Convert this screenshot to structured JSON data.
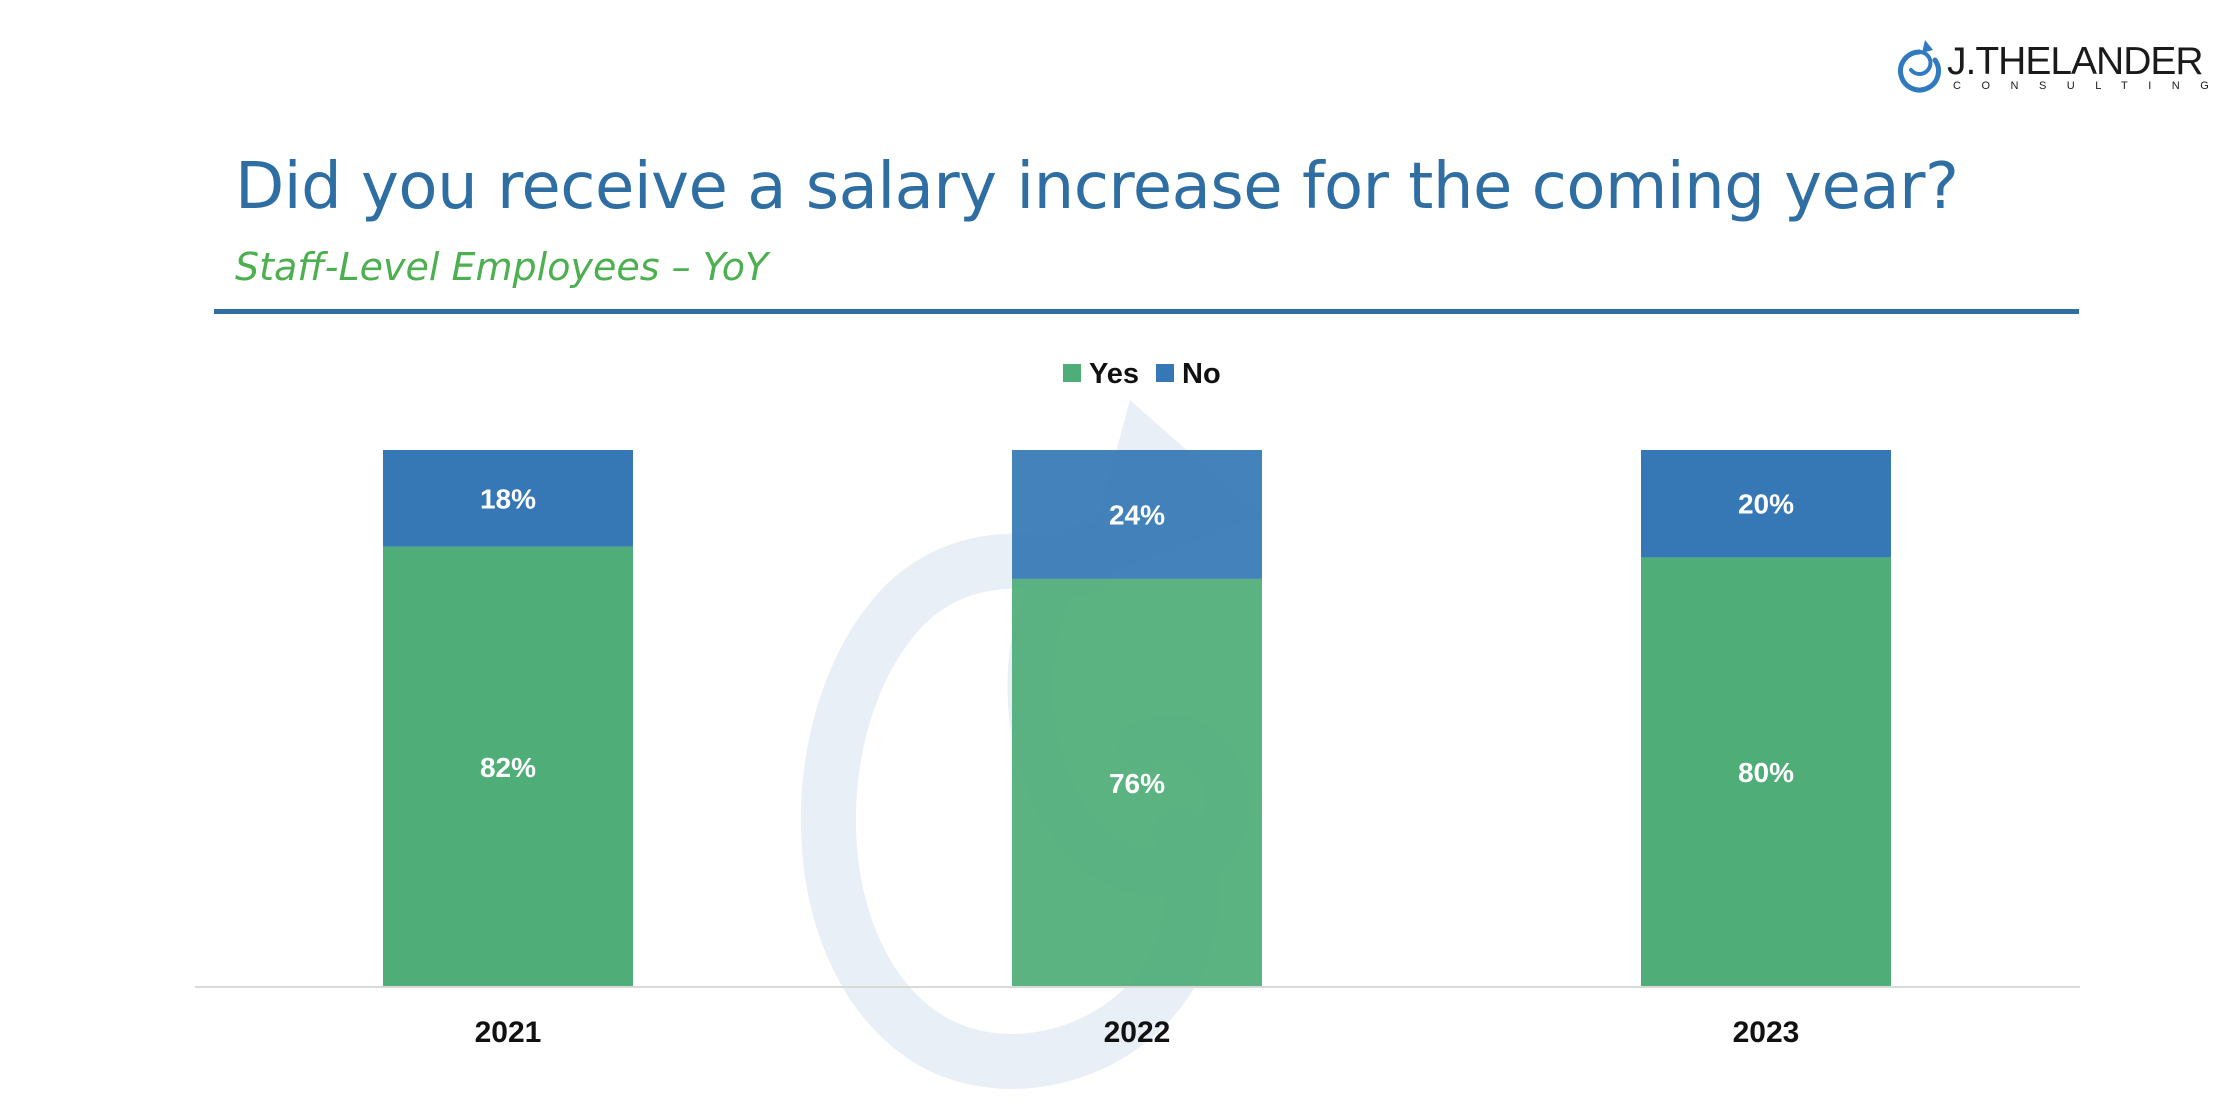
{
  "header": {
    "title": "Did you receive a salary increase for the coming year?",
    "subtitle": "Staff-Level Employees – YoY"
  },
  "logo": {
    "name": "J.THELANDER",
    "tagline": "CONSULTING",
    "icon": "spiral-logo-icon"
  },
  "colors": {
    "title": "#2f6ea3",
    "subtitle": "#4caf50",
    "yes": "#4fad78",
    "no": "#3578b5",
    "watermark": "#e8eff6"
  },
  "chart_data": {
    "type": "bar",
    "stacked": true,
    "categories": [
      "2021",
      "2022",
      "2023"
    ],
    "series": [
      {
        "name": "Yes",
        "values": [
          82,
          76,
          80
        ],
        "labels": [
          "82%",
          "76%",
          "80%"
        ]
      },
      {
        "name": "No",
        "values": [
          18,
          24,
          20
        ],
        "labels": [
          "18%",
          "24%",
          "20%"
        ]
      }
    ],
    "ylim": [
      0,
      100
    ],
    "legend": "top-center",
    "grid": false
  }
}
